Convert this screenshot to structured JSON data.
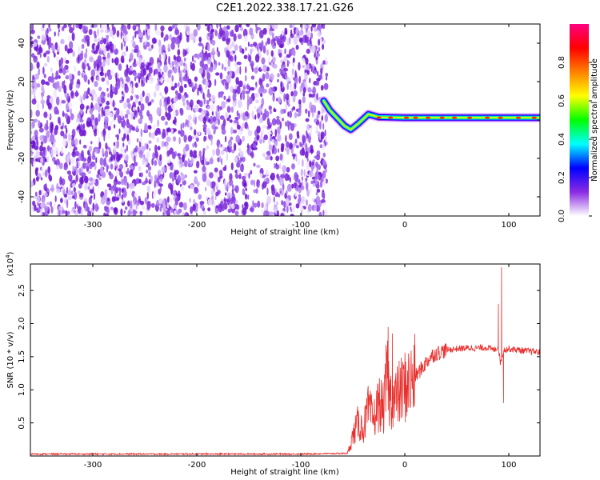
{
  "chart_data": [
    {
      "type": "heatmap",
      "title": "C2E1.2022.338.17.21.G26",
      "xlabel": "Height of straight line (km)",
      "ylabel": "Frequency (Hz)",
      "xlim": [
        -360,
        130
      ],
      "ylim": [
        -50,
        50
      ],
      "x_ticks": [
        -300,
        -200,
        -100,
        0,
        100
      ],
      "y_ticks": [
        -40,
        -20,
        0,
        20,
        40
      ],
      "noise_region_x": [
        -360,
        -75
      ],
      "signal_track": [
        {
          "x": -78,
          "y": 10
        },
        {
          "x": -72,
          "y": 5
        },
        {
          "x": -65,
          "y": 1
        },
        {
          "x": -58,
          "y": -3
        },
        {
          "x": -52,
          "y": -5
        },
        {
          "x": -45,
          "y": -2
        },
        {
          "x": -35,
          "y": 3
        },
        {
          "x": -25,
          "y": 1.5
        },
        {
          "x": 0,
          "y": 1.2
        },
        {
          "x": 50,
          "y": 1.2
        },
        {
          "x": 130,
          "y": 1.2
        }
      ],
      "colorbar": {
        "label": "Normalized spectral amplitude",
        "ticks": [
          0.0,
          0.2,
          0.4,
          0.6,
          0.8
        ],
        "colors": [
          "#ffffff",
          "#8a2be2",
          "#0000ff",
          "#00ffff",
          "#00ff00",
          "#ffff00",
          "#ff8000",
          "#ff0000",
          "#ff0080"
        ]
      }
    },
    {
      "type": "line",
      "xlabel": "Height of straight line (km)",
      "ylabel": "SNR (10 * v/v)",
      "y_multiplier": "(x10",
      "y_multiplier_exp": "4",
      "y_multiplier_close": ")",
      "xlim": [
        -360,
        130
      ],
      "ylim": [
        0,
        2.9
      ],
      "x_ticks": [
        -300,
        -200,
        -100,
        0,
        100
      ],
      "y_ticks": [
        0.5,
        1.0,
        1.5,
        2.0,
        2.5
      ],
      "y_tick_labels": [
        "0.5",
        "1.0",
        "1.5",
        "2.0",
        "2.5"
      ],
      "color": "#e8302d",
      "series": [
        {
          "x": [
            -360,
            -300,
            -200,
            -100,
            -55,
            -50,
            -45,
            -40,
            -35,
            -30,
            -25,
            -20,
            -17,
            -15,
            -10,
            -5,
            0,
            5,
            10,
            15,
            20,
            25,
            30,
            40,
            50,
            60,
            70,
            80,
            85,
            90,
            92,
            95,
            100,
            110,
            120,
            130
          ],
          "y": [
            0.03,
            0.03,
            0.03,
            0.03,
            0.04,
            0.3,
            0.5,
            0.4,
            0.7,
            0.55,
            0.8,
            0.7,
            1.3,
            0.9,
            0.85,
            0.95,
            1.05,
            1.1,
            1.2,
            1.3,
            1.4,
            1.5,
            1.55,
            1.6,
            1.62,
            1.63,
            1.63,
            1.64,
            1.6,
            1.65,
            1.4,
            1.6,
            1.62,
            1.6,
            1.58,
            1.57
          ]
        }
      ],
      "spikes": [
        {
          "x": -16,
          "y": 1.95
        },
        {
          "x": -12,
          "y": 1.85
        },
        {
          "x": 93,
          "y": 2.85
        },
        {
          "x": 90,
          "y": 2.3
        },
        {
          "x": 95,
          "y": 0.8
        }
      ]
    }
  ]
}
